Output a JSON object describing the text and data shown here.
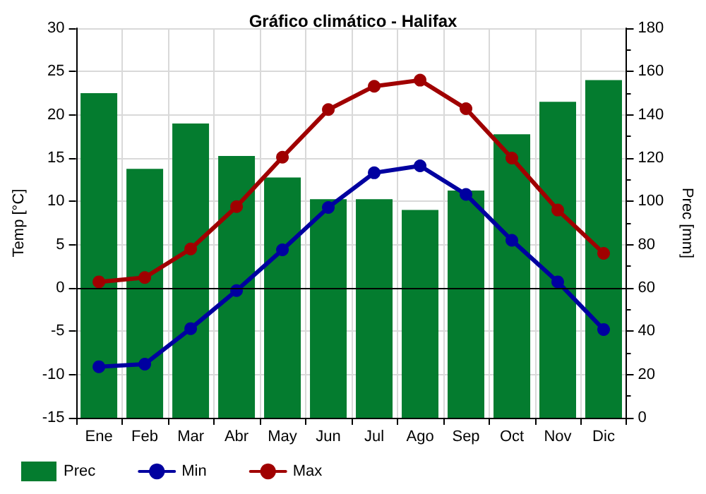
{
  "chart_data": {
    "type": "bar",
    "title": "Gráfico climático - Halifax",
    "ylabel": "Temp [°C]",
    "y2label": "Prec [mm]",
    "categories": [
      "Ene",
      "Feb",
      "Mar",
      "Abr",
      "May",
      "Jun",
      "Jul",
      "Ago",
      "Sep",
      "Oct",
      "Nov",
      "Dic"
    ],
    "series": [
      {
        "name": "Prec",
        "axis": "y2",
        "color": "#047c2f",
        "values": [
          150,
          115,
          136,
          121,
          111,
          101,
          101,
          96,
          105,
          131,
          146,
          156
        ]
      },
      {
        "name": "Min",
        "type": "line",
        "color": "#0000a0",
        "values": [
          -9.1,
          -8.8,
          -4.7,
          -0.3,
          4.4,
          9.3,
          13.3,
          14.1,
          10.8,
          5.5,
          0.7,
          -4.8
        ]
      },
      {
        "name": "Max",
        "type": "line",
        "color": "#a00000",
        "values": [
          0.7,
          1.2,
          4.5,
          9.4,
          15.1,
          20.6,
          23.3,
          24.0,
          20.7,
          15.0,
          9.0,
          4.0
        ]
      }
    ],
    "ylim": [
      -15,
      30
    ],
    "yticks": [
      -15,
      -10,
      -5,
      0,
      5,
      10,
      15,
      20,
      25,
      30
    ],
    "y2lim": [
      0,
      180
    ],
    "y2ticks": [
      0,
      20,
      40,
      60,
      80,
      100,
      120,
      140,
      160,
      180
    ],
    "ref_lines": [
      {
        "axis": "y",
        "value": 0,
        "color": "#000000"
      }
    ],
    "grid": true,
    "legend": "bottom left",
    "marker": "circle",
    "line_style": "solid"
  }
}
